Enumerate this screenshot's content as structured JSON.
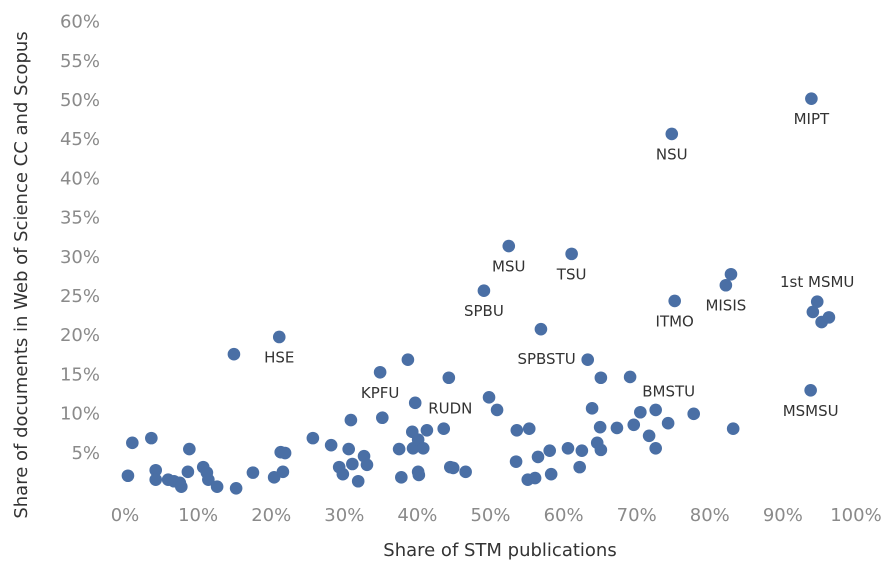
{
  "chart_data": {
    "type": "scatter",
    "x_label": "Share of STM publications",
    "y_label": "Share of documents in Web of Science CC and Scopus",
    "color": "#4a6fa5",
    "xlim": [
      -2,
      103
    ],
    "ylim": [
      0,
      62.5
    ],
    "xticks": [
      {
        "value": 0,
        "label": "0%"
      },
      {
        "value": 10,
        "label": "10%"
      },
      {
        "value": 20,
        "label": "20%"
      },
      {
        "value": 30,
        "label": "30%"
      },
      {
        "value": 40,
        "label": "40%"
      },
      {
        "value": 50,
        "label": "50%"
      },
      {
        "value": 60,
        "label": "60%"
      },
      {
        "value": 70,
        "label": "70%"
      },
      {
        "value": 80,
        "label": "80%"
      },
      {
        "value": 90,
        "label": "90%"
      },
      {
        "value": 100,
        "label": "100%"
      }
    ],
    "yticks": [
      {
        "value": 5,
        "label": "5%"
      },
      {
        "value": 10,
        "label": "10%"
      },
      {
        "value": 15,
        "label": "15%"
      },
      {
        "value": 20,
        "label": "20%"
      },
      {
        "value": 25,
        "label": "25%"
      },
      {
        "value": 30,
        "label": "30%"
      },
      {
        "value": 35,
        "label": "35%"
      },
      {
        "value": 40,
        "label": "40%"
      },
      {
        "value": 45,
        "label": "45%"
      },
      {
        "value": 50,
        "label": "50%"
      },
      {
        "value": 55,
        "label": "55%"
      },
      {
        "value": 60,
        "label": "60%"
      }
    ],
    "x": [
      0.4,
      1,
      3.6,
      4.2,
      4.2,
      5.9,
      6.7,
      7.5,
      7.7,
      8.6,
      8.8,
      10.7,
      11.2,
      11.4,
      12.6,
      14.9,
      15.2,
      17.5,
      20.4,
      21.1,
      21.3,
      21.6,
      21.9,
      25.7,
      28.2,
      29.3,
      29.8,
      30.6,
      30.9,
      31.1,
      31.9,
      32.7,
      33.1,
      34.9,
      35.2,
      37.5,
      37.8,
      38.7,
      39.3,
      39.7,
      39.4,
      40.1,
      40.1,
      40.2,
      40.8,
      41.3,
      43.6,
      44.3,
      44.5,
      44.9,
      46.6,
      49.8,
      49.1,
      50.9,
      52.5,
      53.5,
      53.6,
      55.3,
      55.1,
      56.1,
      56.5,
      56.9,
      58.1,
      58.3,
      60.6,
      61.1,
      62.2,
      62.5,
      63.3,
      63.9,
      64.6,
      65.0,
      65.1,
      65.1,
      67.3,
      69.1,
      69.6,
      70.5,
      71.7,
      72.6,
      72.6,
      74.3,
      74.8,
      75.2,
      77.8,
      82.2,
      82.9,
      83.2,
      93.8,
      93.9,
      94.1,
      94.7,
      95.3,
      96.3
    ],
    "values": [
      2.2,
      6.4,
      7.0,
      2.9,
      1.7,
      1.7,
      1.5,
      1.3,
      0.8,
      2.7,
      5.6,
      3.3,
      2.6,
      1.7,
      0.8,
      17.7,
      0.6,
      2.6,
      2.0,
      19.9,
      5.2,
      2.7,
      5.1,
      7.0,
      6.1,
      3.3,
      2.4,
      5.6,
      9.3,
      3.7,
      1.5,
      4.7,
      3.6,
      15.4,
      9.6,
      5.6,
      2.0,
      17.0,
      7.8,
      11.5,
      5.7,
      6.8,
      2.7,
      2.3,
      5.7,
      8.0,
      8.2,
      14.7,
      3.3,
      3.2,
      2.7,
      12.2,
      25.8,
      10.6,
      31.5,
      4.0,
      8.0,
      8.2,
      1.7,
      1.9,
      4.6,
      20.9,
      5.4,
      2.4,
      5.7,
      30.5,
      3.3,
      5.4,
      17.0,
      10.8,
      6.4,
      8.4,
      14.7,
      5.5,
      8.3,
      14.8,
      8.7,
      10.3,
      7.3,
      10.6,
      5.7,
      8.9,
      45.8,
      24.5,
      10.1,
      26.5,
      27.9,
      8.2,
      13.1,
      50.3,
      23.1,
      24.4,
      21.8,
      22.4
    ],
    "labels": [
      null,
      null,
      null,
      null,
      null,
      null,
      null,
      null,
      null,
      null,
      null,
      null,
      null,
      null,
      null,
      null,
      null,
      null,
      null,
      "HSE",
      null,
      null,
      null,
      null,
      null,
      null,
      null,
      null,
      null,
      null,
      null,
      null,
      null,
      "KPFU",
      null,
      null,
      null,
      null,
      null,
      "RUDN",
      null,
      null,
      null,
      null,
      null,
      null,
      null,
      null,
      null,
      null,
      null,
      null,
      "SPBU",
      null,
      "MSU",
      null,
      null,
      null,
      null,
      null,
      null,
      null,
      null,
      null,
      null,
      "TSU",
      null,
      null,
      "SPBSTU",
      null,
      null,
      null,
      null,
      null,
      null,
      null,
      null,
      null,
      null,
      "BMSTU",
      null,
      null,
      "NSU",
      "ITMO",
      null,
      "MISIS",
      null,
      null,
      "MSMSU",
      "MIPT",
      null,
      "1st MSMU",
      null,
      null
    ]
  }
}
